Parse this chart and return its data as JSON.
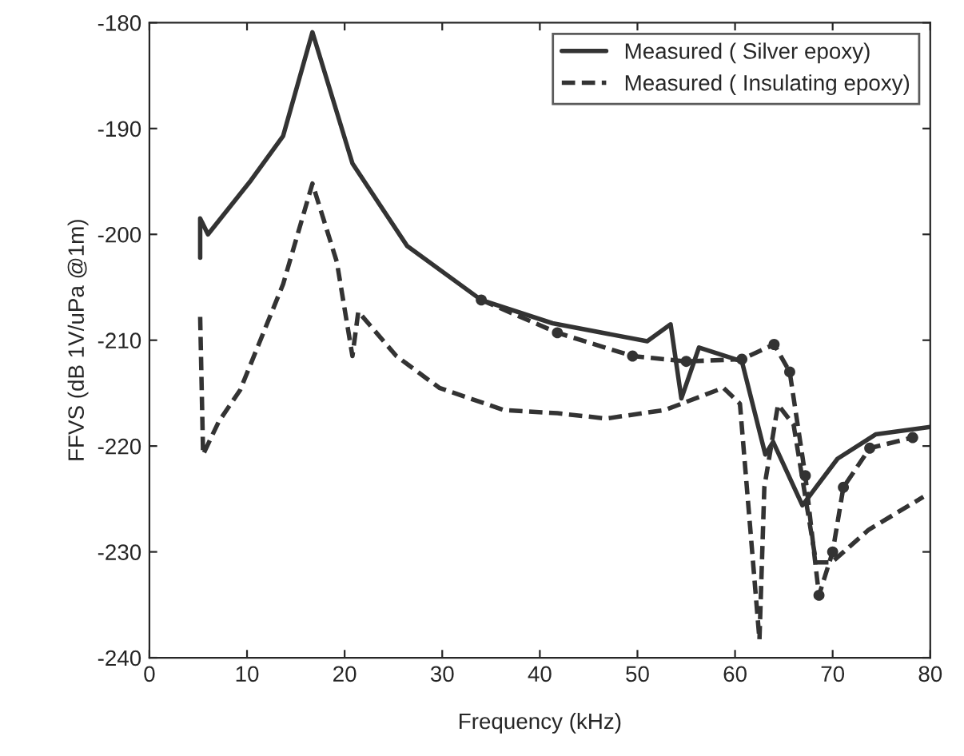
{
  "chart_data": {
    "type": "line",
    "xlabel": "Frequency (kHz)",
    "ylabel": "FFVS (dB 1V/uPa @1m)",
    "xlim": [
      0,
      80
    ],
    "ylim": [
      -240,
      -180
    ],
    "xticks": [
      0,
      10,
      20,
      30,
      40,
      50,
      60,
      70,
      80
    ],
    "yticks": [
      -240,
      -230,
      -220,
      -210,
      -200,
      -190,
      -180
    ],
    "legend": "top right",
    "grid": false,
    "series": [
      {
        "name": "Measured ( Silver epoxy)",
        "color": "#333333",
        "line_style": "solid",
        "marker": "none",
        "x": [
          5.2,
          5.2,
          6,
          10.4,
          13.7,
          16.7,
          20.8,
          26.4,
          34,
          41.3,
          51,
          53.4,
          54.5,
          56.3,
          60.7,
          63.1,
          63.9,
          66.9,
          70.5,
          74.4,
          80
        ],
        "values": [
          -202.2,
          -198.5,
          -200,
          -194.9,
          -190.7,
          -180.9,
          -193.3,
          -201.1,
          -206.2,
          -208.4,
          -210.1,
          -208.5,
          -215.5,
          -210.7,
          -212,
          -220.8,
          -219.6,
          -225.6,
          -221.2,
          -218.9,
          -218.2
        ]
      },
      {
        "name": "Measured ( Insulating epoxy)",
        "color": "#333333",
        "line_style": "dashed",
        "marker": "none",
        "x": [
          5.2,
          5.5,
          7.1,
          9.3,
          13.7,
          16.7,
          19.2,
          20.8,
          21.4,
          25.3,
          29.7,
          36.3,
          41.8,
          46.8,
          52.8,
          58.8,
          60.5,
          62.5,
          63,
          64.4,
          66,
          68.3,
          69.9,
          73.7,
          79.3
        ],
        "values": [
          -207.8,
          -220.8,
          -217.7,
          -214.7,
          -204.7,
          -195.2,
          -202.6,
          -211.5,
          -207.3,
          -211.5,
          -214.5,
          -216.6,
          -216.9,
          -217.4,
          -216.6,
          -214.5,
          -216,
          -238.3,
          -223.9,
          -216.1,
          -218,
          -231,
          -231,
          -227.9,
          -224.8
        ]
      },
      {
        "color": "#333333",
        "line_style": "dashed",
        "marker": "circle",
        "x": [
          34,
          41.8,
          49.5,
          55,
          60.7,
          64,
          65.6,
          67.2,
          68.6,
          70,
          71.1,
          73.8,
          78.2
        ],
        "values": [
          -206.2,
          -209.3,
          -211.5,
          -212,
          -211.8,
          -210.4,
          -213,
          -222.8,
          -234.1,
          -230,
          -223.9,
          -220.2,
          -219.2
        ]
      }
    ]
  }
}
